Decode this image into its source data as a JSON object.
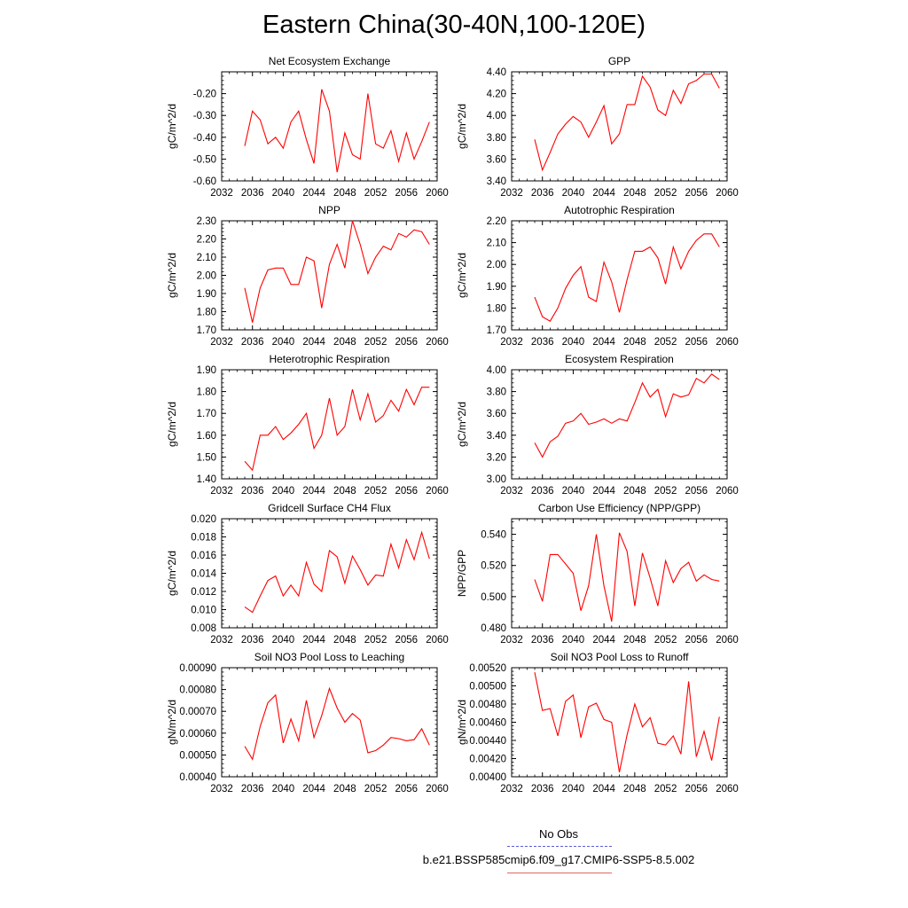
{
  "title": "Eastern China(30-40N,100-120E)",
  "legend": {
    "obs_label": "No Obs",
    "obs_color": "#5b5bd6",
    "case_label": "b.e21.BSSP585cmip6.f09_g17.CMIP6-SSP5-8.5.002",
    "case_color": "#e06666"
  },
  "chart_data": [
    {
      "type": "line",
      "title": "Net Ecosystem Exchange",
      "ylabel": "gC/m^2/d",
      "xlim": [
        2032,
        2060
      ],
      "ylim": [
        -0.6,
        -0.1
      ],
      "xticks": [
        "2032",
        "2036",
        "2040",
        "2044",
        "2048",
        "2052",
        "2056",
        "2060"
      ],
      "yticks": [
        "-0.60",
        "-0.50",
        "-0.40",
        "-0.30",
        "-0.20"
      ],
      "ytick_values": [
        -0.6,
        -0.5,
        -0.4,
        -0.3,
        -0.2
      ],
      "line_color": "#ff0000",
      "x": [
        2035,
        2036,
        2037,
        2038,
        2039,
        2040,
        2041,
        2042,
        2043,
        2044,
        2045,
        2046,
        2047,
        2048,
        2049,
        2050,
        2051,
        2052,
        2053,
        2054,
        2055,
        2056,
        2057,
        2058,
        2059
      ],
      "y": [
        -0.44,
        -0.28,
        -0.32,
        -0.43,
        -0.4,
        -0.45,
        -0.33,
        -0.28,
        -0.41,
        -0.52,
        -0.18,
        -0.28,
        -0.56,
        -0.38,
        -0.48,
        -0.5,
        -0.2,
        -0.43,
        -0.45,
        -0.37,
        -0.51,
        -0.38,
        -0.5,
        -0.42,
        -0.33
      ]
    },
    {
      "type": "line",
      "title": "GPP",
      "ylabel": "gC/m^2/d",
      "xlim": [
        2032,
        2060
      ],
      "ylim": [
        3.4,
        4.4
      ],
      "xticks": [
        "2032",
        "2036",
        "2040",
        "2044",
        "2048",
        "2052",
        "2056",
        "2060"
      ],
      "yticks": [
        "3.40",
        "3.60",
        "3.80",
        "4.00",
        "4.20",
        "4.40"
      ],
      "ytick_values": [
        3.4,
        3.6,
        3.8,
        4.0,
        4.2,
        4.4
      ],
      "line_color": "#ff0000",
      "x": [
        2035,
        2036,
        2037,
        2038,
        2039,
        2040,
        2041,
        2042,
        2043,
        2044,
        2045,
        2046,
        2047,
        2048,
        2049,
        2050,
        2051,
        2052,
        2053,
        2054,
        2055,
        2056,
        2057,
        2058,
        2059
      ],
      "y": [
        3.78,
        3.5,
        3.66,
        3.83,
        3.92,
        3.99,
        3.94,
        3.8,
        3.94,
        4.09,
        3.74,
        3.83,
        4.1,
        4.1,
        4.36,
        4.26,
        4.05,
        4.0,
        4.23,
        4.11,
        4.29,
        4.32,
        4.38,
        4.38,
        4.25
      ]
    },
    {
      "type": "line",
      "title": "NPP",
      "ylabel": "gC/m^2/d",
      "xlim": [
        2032,
        2060
      ],
      "ylim": [
        1.7,
        2.3
      ],
      "xticks": [
        "2032",
        "2036",
        "2040",
        "2044",
        "2048",
        "2052",
        "2056",
        "2060"
      ],
      "yticks": [
        "1.70",
        "1.80",
        "1.90",
        "2.00",
        "2.10",
        "2.20",
        "2.30"
      ],
      "ytick_values": [
        1.7,
        1.8,
        1.9,
        2.0,
        2.1,
        2.2,
        2.3
      ],
      "line_color": "#ff0000",
      "x": [
        2035,
        2036,
        2037,
        2038,
        2039,
        2040,
        2041,
        2042,
        2043,
        2044,
        2045,
        2046,
        2047,
        2048,
        2049,
        2050,
        2051,
        2052,
        2053,
        2054,
        2055,
        2056,
        2057,
        2058,
        2059
      ],
      "y": [
        1.93,
        1.74,
        1.93,
        2.03,
        2.04,
        2.04,
        1.95,
        1.95,
        2.1,
        2.08,
        1.82,
        2.06,
        2.17,
        2.04,
        2.3,
        2.17,
        2.01,
        2.1,
        2.16,
        2.14,
        2.23,
        2.21,
        2.25,
        2.24,
        2.17
      ]
    },
    {
      "type": "line",
      "title": "Autotrophic Respiration",
      "ylabel": "gC/m^2/d",
      "xlim": [
        2032,
        2060
      ],
      "ylim": [
        1.7,
        2.2
      ],
      "xticks": [
        "2032",
        "2036",
        "2040",
        "2044",
        "2048",
        "2052",
        "2056",
        "2060"
      ],
      "yticks": [
        "1.70",
        "1.80",
        "1.90",
        "2.00",
        "2.10",
        "2.20"
      ],
      "ytick_values": [
        1.7,
        1.8,
        1.9,
        2.0,
        2.1,
        2.2
      ],
      "line_color": "#ff0000",
      "x": [
        2035,
        2036,
        2037,
        2038,
        2039,
        2040,
        2041,
        2042,
        2043,
        2044,
        2045,
        2046,
        2047,
        2048,
        2049,
        2050,
        2051,
        2052,
        2053,
        2054,
        2055,
        2056,
        2057,
        2058,
        2059
      ],
      "y": [
        1.85,
        1.76,
        1.74,
        1.8,
        1.89,
        1.95,
        1.99,
        1.85,
        1.83,
        2.01,
        1.92,
        1.78,
        1.93,
        2.06,
        2.06,
        2.08,
        2.03,
        1.91,
        2.08,
        1.98,
        2.06,
        2.11,
        2.14,
        2.14,
        2.08
      ]
    },
    {
      "type": "line",
      "title": "Heterotrophic Respiration",
      "ylabel": "gC/m^2/d",
      "xlim": [
        2032,
        2060
      ],
      "ylim": [
        1.4,
        1.9
      ],
      "xticks": [
        "2032",
        "2036",
        "2040",
        "2044",
        "2048",
        "2052",
        "2056",
        "2060"
      ],
      "yticks": [
        "1.40",
        "1.50",
        "1.60",
        "1.70",
        "1.80",
        "1.90"
      ],
      "ytick_values": [
        1.4,
        1.5,
        1.6,
        1.7,
        1.8,
        1.9
      ],
      "line_color": "#ff0000",
      "x": [
        2035,
        2036,
        2037,
        2038,
        2039,
        2040,
        2041,
        2042,
        2043,
        2044,
        2045,
        2046,
        2047,
        2048,
        2049,
        2050,
        2051,
        2052,
        2053,
        2054,
        2055,
        2056,
        2057,
        2058,
        2059
      ],
      "y": [
        1.48,
        1.44,
        1.6,
        1.6,
        1.64,
        1.58,
        1.61,
        1.65,
        1.7,
        1.54,
        1.6,
        1.77,
        1.6,
        1.64,
        1.81,
        1.67,
        1.79,
        1.66,
        1.69,
        1.76,
        1.71,
        1.81,
        1.74,
        1.82,
        1.82
      ]
    },
    {
      "type": "line",
      "title": "Ecosystem Respiration",
      "ylabel": "gC/m^2/d",
      "xlim": [
        2032,
        2060
      ],
      "ylim": [
        3.0,
        4.0
      ],
      "xticks": [
        "2032",
        "2036",
        "2040",
        "2044",
        "2048",
        "2052",
        "2056",
        "2060"
      ],
      "yticks": [
        "3.00",
        "3.20",
        "3.40",
        "3.60",
        "3.80",
        "4.00"
      ],
      "ytick_values": [
        3.0,
        3.2,
        3.4,
        3.6,
        3.8,
        4.0
      ],
      "line_color": "#ff0000",
      "x": [
        2035,
        2036,
        2037,
        2038,
        2039,
        2040,
        2041,
        2042,
        2043,
        2044,
        2045,
        2046,
        2047,
        2048,
        2049,
        2050,
        2051,
        2052,
        2053,
        2054,
        2055,
        2056,
        2057,
        2058,
        2059
      ],
      "y": [
        3.33,
        3.2,
        3.34,
        3.39,
        3.51,
        3.53,
        3.6,
        3.5,
        3.52,
        3.55,
        3.51,
        3.55,
        3.53,
        3.7,
        3.88,
        3.75,
        3.82,
        3.57,
        3.78,
        3.75,
        3.77,
        3.92,
        3.88,
        3.96,
        3.91
      ]
    },
    {
      "type": "line",
      "title": "Gridcell Surface CH4 Flux",
      "ylabel": "gC/m^2/d",
      "xlim": [
        2032,
        2060
      ],
      "ylim": [
        0.008,
        0.02
      ],
      "xticks": [
        "2032",
        "2036",
        "2040",
        "2044",
        "2048",
        "2052",
        "2056",
        "2060"
      ],
      "yticks": [
        "0.008",
        "0.010",
        "0.012",
        "0.014",
        "0.016",
        "0.018",
        "0.020"
      ],
      "ytick_values": [
        0.008,
        0.01,
        0.012,
        0.014,
        0.016,
        0.018,
        0.02
      ],
      "line_color": "#ff0000",
      "x": [
        2035,
        2036,
        2037,
        2038,
        2039,
        2040,
        2041,
        2042,
        2043,
        2044,
        2045,
        2046,
        2047,
        2048,
        2049,
        2050,
        2051,
        2052,
        2053,
        2054,
        2055,
        2056,
        2057,
        2058,
        2059
      ],
      "y": [
        0.0103,
        0.0097,
        0.0115,
        0.0132,
        0.0137,
        0.0115,
        0.0127,
        0.0115,
        0.0152,
        0.0128,
        0.012,
        0.0165,
        0.0158,
        0.0129,
        0.0159,
        0.0144,
        0.0127,
        0.0138,
        0.0137,
        0.0172,
        0.0146,
        0.0177,
        0.0155,
        0.0185,
        0.0156
      ]
    },
    {
      "type": "line",
      "title": "Carbon Use Efficiency (NPP/GPP)",
      "ylabel": "NPP/GPP",
      "xlim": [
        2032,
        2060
      ],
      "ylim": [
        0.48,
        0.55
      ],
      "xticks": [
        "2032",
        "2036",
        "2040",
        "2044",
        "2048",
        "2052",
        "2056",
        "2060"
      ],
      "yticks": [
        "0.480",
        "0.500",
        "0.520",
        "0.540"
      ],
      "ytick_values": [
        0.48,
        0.5,
        0.52,
        0.54
      ],
      "line_color": "#ff0000",
      "x": [
        2035,
        2036,
        2037,
        2038,
        2039,
        2040,
        2041,
        2042,
        2043,
        2044,
        2045,
        2046,
        2047,
        2048,
        2049,
        2050,
        2051,
        2052,
        2053,
        2054,
        2055,
        2056,
        2057,
        2058,
        2059
      ],
      "y": [
        0.511,
        0.497,
        0.527,
        0.527,
        0.521,
        0.515,
        0.491,
        0.507,
        0.54,
        0.507,
        0.484,
        0.541,
        0.529,
        0.494,
        0.528,
        0.512,
        0.494,
        0.523,
        0.509,
        0.518,
        0.522,
        0.51,
        0.514,
        0.511,
        0.51
      ]
    },
    {
      "type": "line",
      "title": "Soil NO3 Pool Loss to Leaching",
      "ylabel": "gN/m^2/d",
      "xlim": [
        2032,
        2060
      ],
      "ylim": [
        0.0004,
        0.0009
      ],
      "xticks": [
        "2032",
        "2036",
        "2040",
        "2044",
        "2048",
        "2052",
        "2056",
        "2060"
      ],
      "yticks": [
        "0.00040",
        "0.00050",
        "0.00060",
        "0.00070",
        "0.00080",
        "0.00090"
      ],
      "ytick_values": [
        0.0004,
        0.0005,
        0.0006,
        0.0007,
        0.0008,
        0.0009
      ],
      "line_color": "#ff0000",
      "x": [
        2035,
        2036,
        2037,
        2038,
        2039,
        2040,
        2041,
        2042,
        2043,
        2044,
        2045,
        2046,
        2047,
        2048,
        2049,
        2050,
        2051,
        2052,
        2053,
        2054,
        2055,
        2056,
        2057,
        2058,
        2059
      ],
      "y": [
        0.00054,
        0.00048,
        0.00063,
        0.00074,
        0.000775,
        0.000555,
        0.000665,
        0.000565,
        0.00075,
        0.00058,
        0.00068,
        0.000805,
        0.000715,
        0.00065,
        0.00069,
        0.00066,
        0.00051,
        0.00052,
        0.000545,
        0.00058,
        0.000575,
        0.000565,
        0.00057,
        0.00062,
        0.000545
      ]
    },
    {
      "type": "line",
      "title": "Soil NO3 Pool Loss to Runoff",
      "ylabel": "gN/m^2/d",
      "xlim": [
        2032,
        2060
      ],
      "ylim": [
        0.004,
        0.0052
      ],
      "xticks": [
        "2032",
        "2036",
        "2040",
        "2044",
        "2048",
        "2052",
        "2056",
        "2060"
      ],
      "yticks": [
        "0.00400",
        "0.00420",
        "0.00440",
        "0.00460",
        "0.00480",
        "0.00500",
        "0.00520"
      ],
      "ytick_values": [
        0.004,
        0.0042,
        0.0044,
        0.0046,
        0.0048,
        0.005,
        0.0052
      ],
      "line_color": "#ff0000",
      "x": [
        2035,
        2036,
        2037,
        2038,
        2039,
        2040,
        2041,
        2042,
        2043,
        2044,
        2045,
        2046,
        2047,
        2048,
        2049,
        2050,
        2051,
        2052,
        2053,
        2054,
        2055,
        2056,
        2057,
        2058,
        2059
      ],
      "y": [
        0.00515,
        0.00473,
        0.00475,
        0.00445,
        0.00483,
        0.0049,
        0.00443,
        0.00477,
        0.00481,
        0.00463,
        0.0046,
        0.00405,
        0.00446,
        0.0048,
        0.00455,
        0.00465,
        0.00437,
        0.00435,
        0.00445,
        0.00425,
        0.00505,
        0.00422,
        0.0045,
        0.00418,
        0.00466
      ]
    }
  ]
}
